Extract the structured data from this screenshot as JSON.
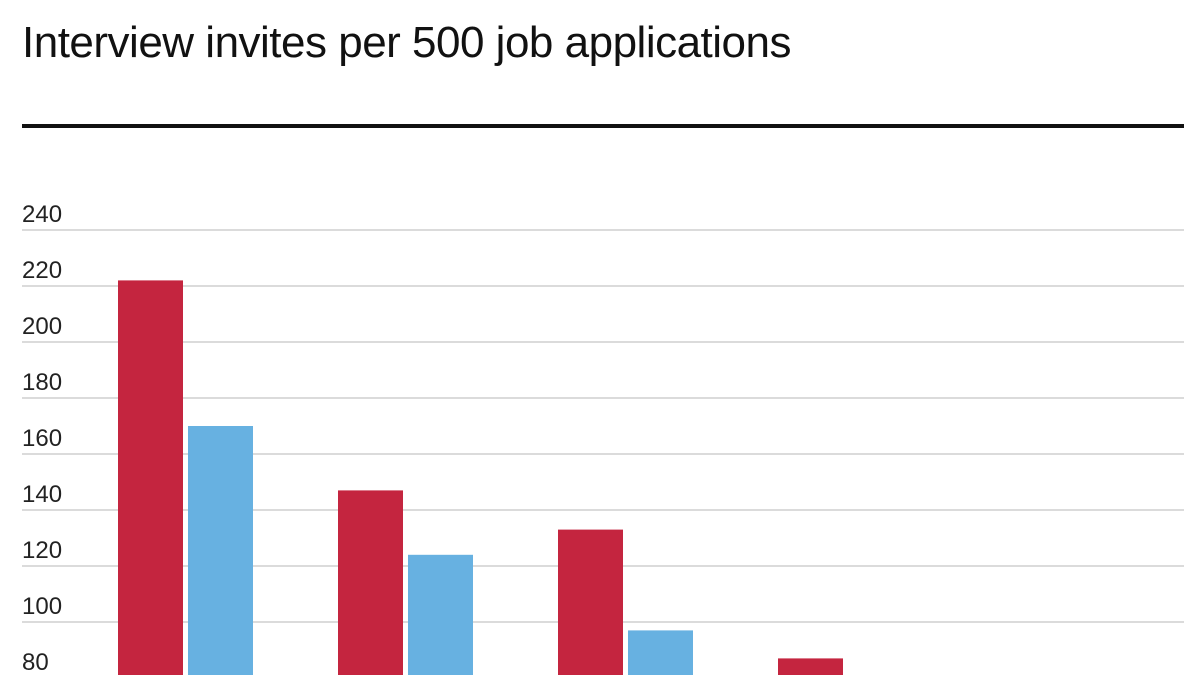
{
  "chart_data": {
    "type": "bar",
    "title": "Interview invites per 500 job applications",
    "xlabel": "",
    "ylabel": "",
    "categories": [
      "",
      "",
      "",
      ""
    ],
    "ylim": [
      80,
      240
    ],
    "yticks": [
      80,
      100,
      120,
      140,
      160,
      180,
      200,
      220,
      240
    ],
    "grid": true,
    "series": [
      {
        "color": "#c4253f",
        "values": [
          222,
          147,
          133,
          87
        ]
      },
      {
        "color": "#67b1e1",
        "values": [
          170,
          124,
          97,
          null
        ]
      }
    ]
  }
}
